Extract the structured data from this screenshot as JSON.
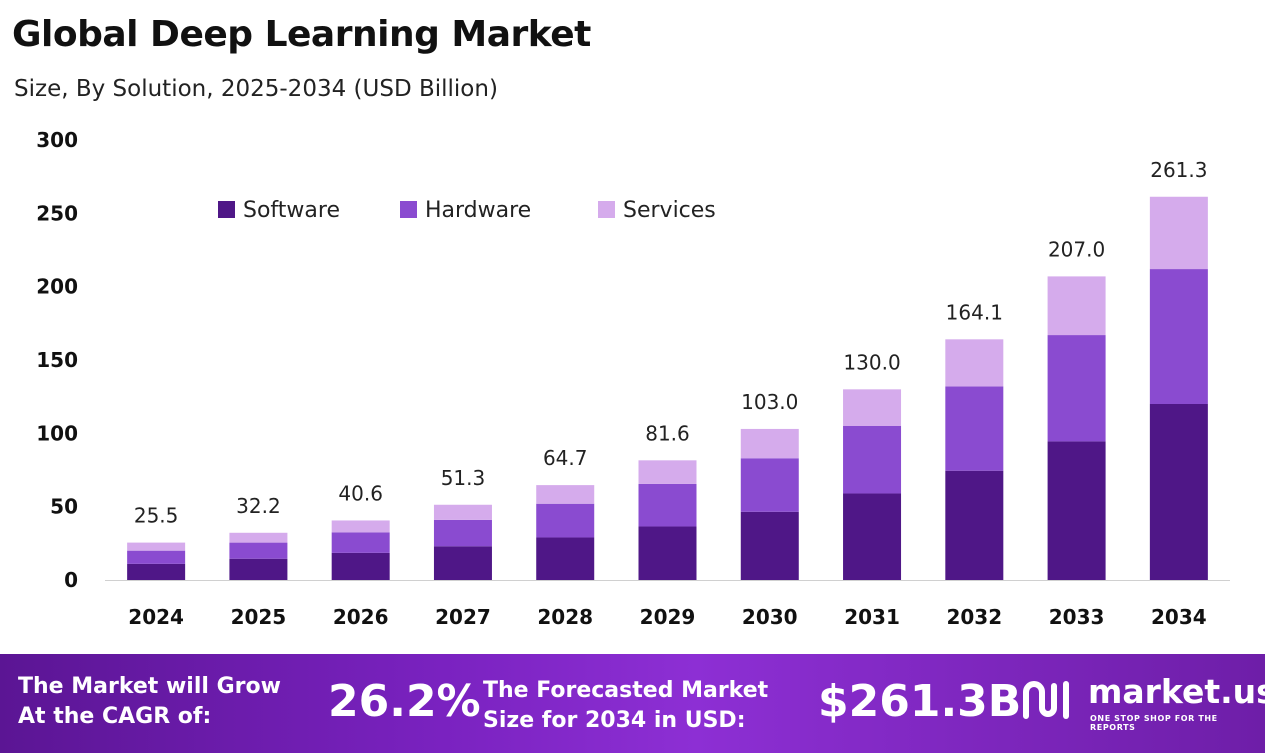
{
  "title": "Global Deep Learning Market",
  "subtitle": "Size, By Solution, 2025-2034 (USD Billion)",
  "colors": {
    "software": "#4f1787",
    "hardware": "#8a4bd0",
    "services": "#d5abec",
    "footer_start": "#5b1594",
    "footer_end": "#8d2fd4"
  },
  "chart_data": {
    "type": "bar",
    "stacked": true,
    "categories": [
      "2024",
      "2025",
      "2026",
      "2027",
      "2028",
      "2029",
      "2030",
      "2031",
      "2032",
      "2033",
      "2034"
    ],
    "series": [
      {
        "name": "Software",
        "values": [
          11.0,
          14.5,
          18.5,
          23.0,
          29.0,
          36.5,
          46.5,
          59.0,
          74.5,
          94.5,
          120.0
        ]
      },
      {
        "name": "Hardware",
        "values": [
          9.0,
          11.0,
          14.0,
          18.0,
          23.0,
          29.0,
          36.5,
          46.0,
          57.5,
          72.5,
          92.0
        ]
      },
      {
        "name": "Services",
        "values": [
          5.5,
          6.7,
          8.1,
          10.3,
          12.7,
          16.1,
          20.0,
          25.0,
          32.1,
          40.0,
          49.3
        ]
      }
    ],
    "totals": [
      "25.5",
      "32.2",
      "40.6",
      "51.3",
      "64.7",
      "81.6",
      "103.0",
      "130.0",
      "164.1",
      "207.0",
      "261.3"
    ],
    "yticks": [
      0,
      50,
      100,
      150,
      200,
      250,
      300
    ],
    "ylim": [
      0,
      300
    ],
    "xlabel": "",
    "ylabel": "",
    "grid": false,
    "legend_position": "top-left"
  },
  "footer": {
    "cagr_label_line1": "The Market will Grow",
    "cagr_label_line2": "At the CAGR of:",
    "cagr_value": "26.2%",
    "forecast_label_line1": "The Forecasted Market",
    "forecast_label_line2": "Size for 2034 in USD:",
    "forecast_value": "$261.3B",
    "logo_name": "market.us",
    "logo_tagline": "ONE STOP SHOP FOR THE REPORTS",
    "logo_icon": "market-us-logo-icon"
  }
}
